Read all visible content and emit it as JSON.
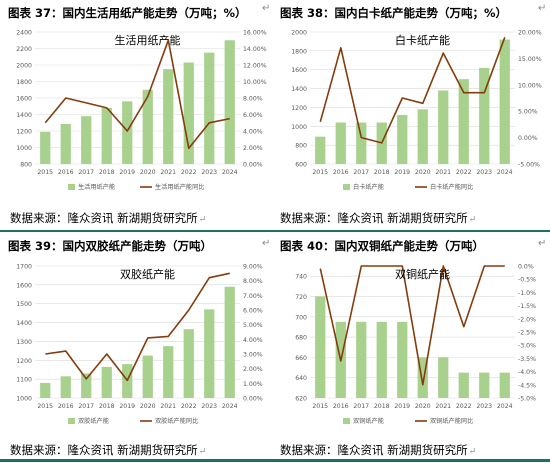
{
  "colors": {
    "bar": "#a9d18e",
    "line": "#843c0c",
    "grid": "#d9d9d9",
    "axis_text": "#595959",
    "rule": "#1d6f6a"
  },
  "panels": [
    {
      "caption": "图表 37：国内生活用纸产能走势（万吨；%）",
      "source": "数据来源：隆众资讯  新湖期货研究所",
      "corner_mark": "↵"
    },
    {
      "caption": "图表 38：国内白卡纸产能走势（万吨；%）",
      "source": "数据来源：隆众资讯  新湖期货研究所",
      "corner_mark": "↵"
    },
    {
      "caption": "图表 39：国内双胶纸产能走势（万吨）",
      "source": "数据来源：隆众资讯  新湖期货研究所",
      "corner_mark": "↵"
    },
    {
      "caption": "图表 40：国内双铜纸产能走势（万吨）",
      "source": "数据来源：隆众资讯  新湖期货研究所",
      "corner_mark": "↵"
    }
  ],
  "chart_data": [
    {
      "type": "bar",
      "title": "生活用纸产能",
      "categories": [
        "2015",
        "2016",
        "2017",
        "2018",
        "2019",
        "2020",
        "2021",
        "2022",
        "2023",
        "2024"
      ],
      "series": [
        {
          "name": "生活用纸产能",
          "kind": "bar",
          "axis": "left",
          "values": [
            1190,
            1285,
            1380,
            1480,
            1560,
            1700,
            1950,
            2030,
            2150,
            2300
          ]
        },
        {
          "name": "生活用纸产能同比",
          "kind": "line",
          "axis": "right",
          "values": [
            5.0,
            8.0,
            7.4,
            6.8,
            4.0,
            8.2,
            15.0,
            1.9,
            5.0,
            5.5
          ]
        }
      ],
      "ylim_left": [
        800,
        2400
      ],
      "yticks_left": [
        800,
        1000,
        1200,
        1400,
        1600,
        1800,
        2000,
        2200,
        2400
      ],
      "ylim_right": [
        0,
        16
      ],
      "yticks_right": [
        0,
        2,
        4,
        6,
        8,
        10,
        12,
        14,
        16
      ],
      "right_format": "percent2",
      "legend": "bottom"
    },
    {
      "type": "bar",
      "title": "白卡纸产能",
      "categories": [
        "2015",
        "2016",
        "2017",
        "2018",
        "2019",
        "2020",
        "2021",
        "2022",
        "2023",
        "2024"
      ],
      "series": [
        {
          "name": "白卡纸产能",
          "kind": "bar",
          "axis": "left",
          "values": [
            890,
            1040,
            1040,
            1040,
            1120,
            1180,
            1380,
            1500,
            1620,
            1920
          ]
        },
        {
          "name": "白卡纸产能同比",
          "kind": "line",
          "axis": "right",
          "values": [
            3.0,
            17.0,
            0.0,
            -1.0,
            7.5,
            6.5,
            16.0,
            8.5,
            8.5,
            19.0
          ]
        }
      ],
      "ylim_left": [
        600,
        2000
      ],
      "yticks_left": [
        600,
        800,
        1000,
        1200,
        1400,
        1600,
        1800,
        2000
      ],
      "ylim_right": [
        -5,
        20
      ],
      "yticks_right": [
        -5,
        0,
        5,
        10,
        15,
        20
      ],
      "right_format": "percent2",
      "legend": "bottom"
    },
    {
      "type": "bar",
      "title": "双胶纸产能",
      "categories": [
        "2015",
        "2016",
        "2017",
        "2018",
        "2019",
        "2020",
        "2021",
        "2022",
        "2023",
        "2024"
      ],
      "series": [
        {
          "name": "双胶纸产能",
          "kind": "bar",
          "axis": "left",
          "values": [
            1080,
            1115,
            1130,
            1165,
            1180,
            1225,
            1275,
            1365,
            1470,
            1590
          ]
        },
        {
          "name": "双胶纸产能同比",
          "kind": "line",
          "axis": "right",
          "values": [
            3.0,
            3.2,
            1.3,
            3.0,
            1.2,
            4.1,
            4.2,
            6.0,
            8.2,
            8.5
          ]
        }
      ],
      "ylim_left": [
        1000,
        1700
      ],
      "yticks_left": [
        1000,
        1100,
        1200,
        1300,
        1400,
        1500,
        1600,
        1700
      ],
      "ylim_right": [
        0,
        9
      ],
      "yticks_right": [
        0,
        1,
        2,
        3,
        4,
        5,
        6,
        7,
        8,
        9
      ],
      "right_format": "percent2",
      "legend": "bottom"
    },
    {
      "type": "bar",
      "title": "双铜纸产能",
      "categories": [
        "2015",
        "2016",
        "2017",
        "2018",
        "2019",
        "2020",
        "2021",
        "2022",
        "2023",
        "2024"
      ],
      "series": [
        {
          "name": "双铜纸产能",
          "kind": "bar",
          "axis": "left",
          "values": [
            720,
            695,
            695,
            695,
            695,
            660,
            660,
            645,
            645,
            645
          ]
        },
        {
          "name": "双铜纸产能同比",
          "kind": "line",
          "axis": "right",
          "values": [
            -0.1,
            -3.6,
            0.0,
            0.0,
            0.0,
            -4.5,
            0.0,
            -2.3,
            0.0,
            0.0
          ]
        }
      ],
      "ylim_left": [
        620,
        750
      ],
      "yticks_left": [
        620,
        640,
        660,
        680,
        700,
        720,
        740
      ],
      "ylim_right": [
        -5,
        0
      ],
      "yticks_right": [
        -5,
        -4.5,
        -4,
        -3.5,
        -3,
        -2.5,
        -2,
        -1.5,
        -1,
        -0.5,
        0
      ],
      "right_format": "percent1",
      "legend": "bottom"
    }
  ]
}
